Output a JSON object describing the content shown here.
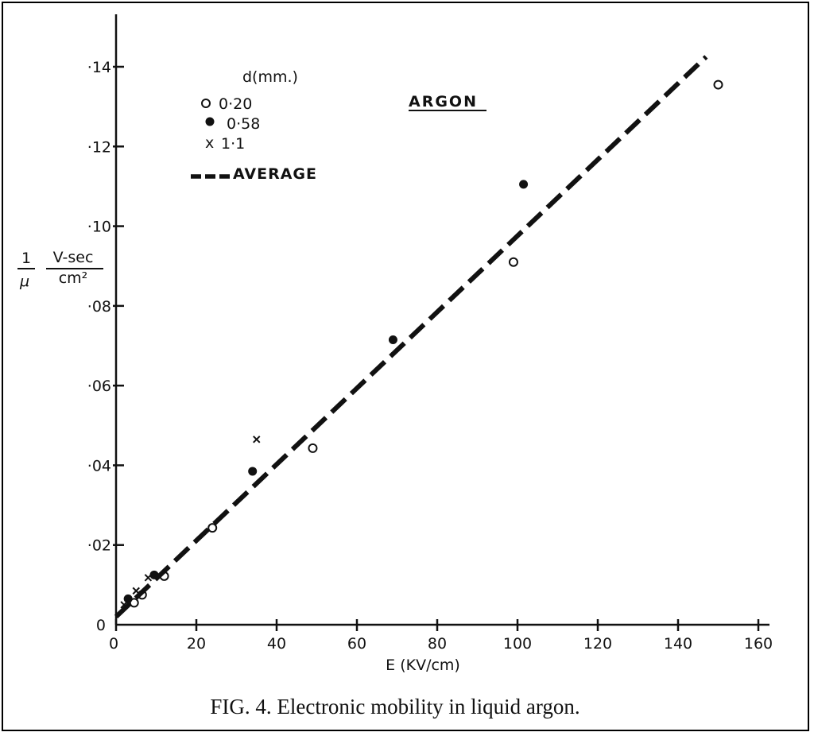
{
  "chart_data": {
    "type": "scatter",
    "title": "ARGON",
    "caption": "FIG. 4.   Electronic mobility in liquid argon.",
    "xlabel": "E (KV/cm)",
    "ylabel": {
      "lhs_num": "1",
      "lhs_den": "μ",
      "unit_num": "V-sec",
      "unit_den": "cm²"
    },
    "xlim": [
      0,
      160
    ],
    "ylim": [
      0,
      0.14
    ],
    "x_ticks": [
      0,
      20,
      40,
      60,
      80,
      100,
      120,
      140,
      160
    ],
    "x_tick_labels": [
      "0",
      "20",
      "40",
      "60",
      "80",
      "100",
      "120",
      "140",
      "160"
    ],
    "y_ticks": [
      0,
      0.02,
      0.04,
      0.06,
      0.08,
      0.1,
      0.12,
      0.14
    ],
    "y_tick_labels": [
      "0",
      "·02",
      "·04",
      "·06",
      "·08",
      "·10",
      "·12",
      "·14"
    ],
    "grid": false,
    "legend": {
      "title": "d(mm.)",
      "placement": "top-left",
      "entries": [
        {
          "marker": "open-circle",
          "label": "0·20"
        },
        {
          "marker": "filled-circle",
          "label": "0·58"
        },
        {
          "marker": "cross",
          "label": "1·1"
        },
        {
          "marker": "dashed-line",
          "label": "AVERAGE"
        }
      ]
    },
    "series": [
      {
        "name": "0·20",
        "marker": "open-circle",
        "points": [
          {
            "x": 4.5,
            "y": 0.0055
          },
          {
            "x": 6.5,
            "y": 0.0075
          },
          {
            "x": 12,
            "y": 0.0122
          },
          {
            "x": 24,
            "y": 0.0243
          },
          {
            "x": 49,
            "y": 0.0443
          },
          {
            "x": 99,
            "y": 0.091
          },
          {
            "x": 150,
            "y": 0.1355
          }
        ]
      },
      {
        "name": "0·58",
        "marker": "filled-circle",
        "points": [
          {
            "x": 3,
            "y": 0.0065
          },
          {
            "x": 9.5,
            "y": 0.0125
          },
          {
            "x": 34,
            "y": 0.0385
          },
          {
            "x": 69,
            "y": 0.0715
          },
          {
            "x": 101.5,
            "y": 0.1105
          }
        ]
      },
      {
        "name": "1·1",
        "marker": "cross",
        "points": [
          {
            "x": 2,
            "y": 0.005
          },
          {
            "x": 5,
            "y": 0.0085
          },
          {
            "x": 8,
            "y": 0.0118
          },
          {
            "x": 35,
            "y": 0.0465
          }
        ]
      },
      {
        "name": "AVERAGE",
        "marker": "dashed-line",
        "line": [
          {
            "x": 0,
            "y": 0.002
          },
          {
            "x": 147,
            "y": 0.1425
          }
        ]
      }
    ]
  }
}
